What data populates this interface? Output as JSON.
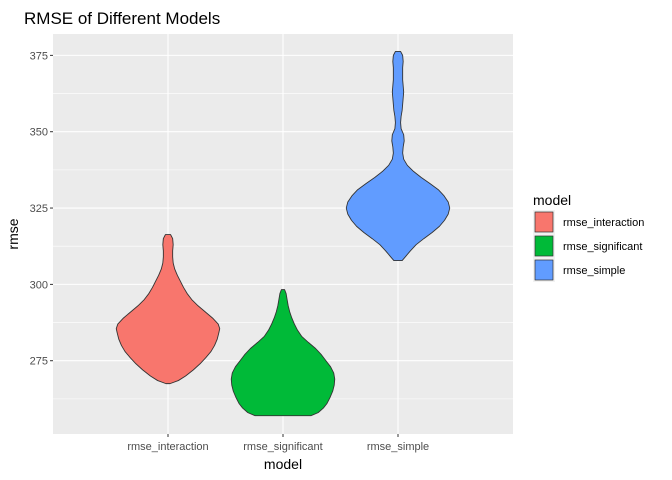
{
  "chart_data": {
    "type": "violin",
    "title": "RMSE of Different Models",
    "xlabel": "model",
    "ylabel": "rmse",
    "categories": [
      "rmse_interaction",
      "rmse_significant",
      "rmse_simple"
    ],
    "ylim": [
      251,
      382
    ],
    "yticks": [
      275,
      300,
      325,
      350,
      375
    ],
    "grid": true,
    "legend": {
      "title": "model",
      "placement": "right",
      "entries": [
        "rmse_interaction",
        "rmse_significant",
        "rmse_simple"
      ]
    },
    "series": [
      {
        "name": "rmse_interaction",
        "color": "#F8766D",
        "profile": [
          [
            267.5,
            0.04
          ],
          [
            268.5,
            0.2
          ],
          [
            270,
            0.34
          ],
          [
            272,
            0.49
          ],
          [
            274,
            0.62
          ],
          [
            276,
            0.73
          ],
          [
            278,
            0.83
          ],
          [
            280,
            0.9
          ],
          [
            282,
            0.95
          ],
          [
            284,
            0.98
          ],
          [
            285.5,
            1.0
          ],
          [
            287,
            0.97
          ],
          [
            289,
            0.86
          ],
          [
            291,
            0.72
          ],
          [
            293,
            0.58
          ],
          [
            295,
            0.46
          ],
          [
            297,
            0.37
          ],
          [
            299,
            0.3
          ],
          [
            301,
            0.24
          ],
          [
            303,
            0.18
          ],
          [
            305,
            0.13
          ],
          [
            307,
            0.1
          ],
          [
            309,
            0.09
          ],
          [
            311,
            0.09
          ],
          [
            313,
            0.1
          ],
          [
            315,
            0.09
          ],
          [
            316.3,
            0.05
          ]
        ]
      },
      {
        "name": "rmse_significant",
        "color": "#00BA38",
        "profile": [
          [
            257,
            0.54
          ],
          [
            258,
            0.68
          ],
          [
            259.5,
            0.78
          ],
          [
            261,
            0.85
          ],
          [
            263,
            0.91
          ],
          [
            265,
            0.96
          ],
          [
            267,
            0.99
          ],
          [
            269,
            1.0
          ],
          [
            271,
            0.98
          ],
          [
            273,
            0.92
          ],
          [
            275,
            0.83
          ],
          [
            277,
            0.74
          ],
          [
            279,
            0.63
          ],
          [
            281,
            0.49
          ],
          [
            283,
            0.36
          ],
          [
            285,
            0.28
          ],
          [
            287,
            0.22
          ],
          [
            289,
            0.17
          ],
          [
            291,
            0.13
          ],
          [
            293,
            0.1
          ],
          [
            295,
            0.08
          ],
          [
            297,
            0.06
          ],
          [
            298.3,
            0.03
          ]
        ]
      },
      {
        "name": "rmse_simple",
        "color": "#619CFF",
        "profile": [
          [
            307.8,
            0.08
          ],
          [
            309,
            0.14
          ],
          [
            311,
            0.24
          ],
          [
            313,
            0.35
          ],
          [
            315,
            0.5
          ],
          [
            317,
            0.66
          ],
          [
            319,
            0.8
          ],
          [
            321,
            0.9
          ],
          [
            323,
            0.97
          ],
          [
            325,
            1.0
          ],
          [
            327,
            0.97
          ],
          [
            329,
            0.89
          ],
          [
            331,
            0.78
          ],
          [
            333,
            0.62
          ],
          [
            335,
            0.45
          ],
          [
            337,
            0.3
          ],
          [
            339,
            0.18
          ],
          [
            341,
            0.11
          ],
          [
            343,
            0.09
          ],
          [
            345,
            0.1
          ],
          [
            347,
            0.12
          ],
          [
            349,
            0.11
          ],
          [
            351,
            0.06
          ],
          [
            353,
            0.05
          ],
          [
            355,
            0.06
          ],
          [
            357,
            0.08
          ],
          [
            359,
            0.09
          ],
          [
            361,
            0.1
          ],
          [
            363,
            0.11
          ],
          [
            365,
            0.1
          ],
          [
            367,
            0.09
          ],
          [
            369,
            0.09
          ],
          [
            371,
            0.09
          ],
          [
            373,
            0.1
          ],
          [
            375,
            0.09
          ],
          [
            376.3,
            0.05
          ]
        ]
      }
    ]
  }
}
